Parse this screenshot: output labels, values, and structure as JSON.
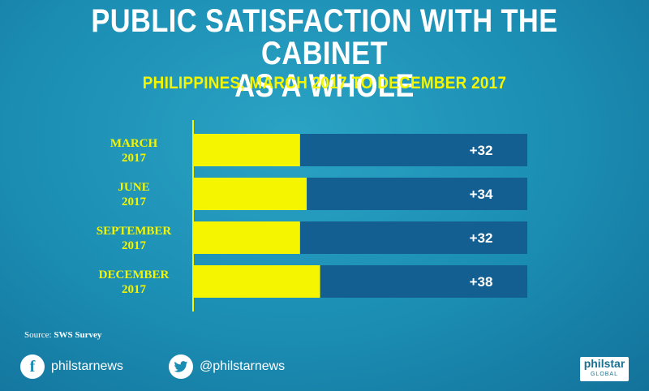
{
  "title_line1": "PUBLIC SATISFACTION WITH THE CABINET",
  "title_line2": "AS A WHOLE",
  "subtitle": "PHILIPPINES, MARCH 2017 TO DECEMBER 2017",
  "chart_data": {
    "type": "bar",
    "orientation": "horizontal",
    "categories": [
      "MARCH 2017",
      "JUNE 2017",
      "SEPTEMBER 2017",
      "DECEMBER 2017"
    ],
    "category_lines": [
      [
        "MARCH",
        "2017"
      ],
      [
        "JUNE",
        "2017"
      ],
      [
        "SEPTEMBER",
        "2017"
      ],
      [
        "DECEMBER",
        "2017"
      ]
    ],
    "values": [
      32,
      34,
      32,
      38
    ],
    "value_labels": [
      "+32",
      "+34",
      "+32",
      "+38"
    ],
    "xlim": [
      0,
      100
    ],
    "colors": {
      "bar": "#f5f500",
      "track": "#135f91",
      "axis": "#f5f500"
    }
  },
  "source": {
    "prefix": "Source:",
    "name": "SWS Survey"
  },
  "social": {
    "facebook": "philstarnews",
    "twitter": "@philstarnews"
  },
  "logo": {
    "main": "philstar",
    "sub": "GLOBAL"
  }
}
